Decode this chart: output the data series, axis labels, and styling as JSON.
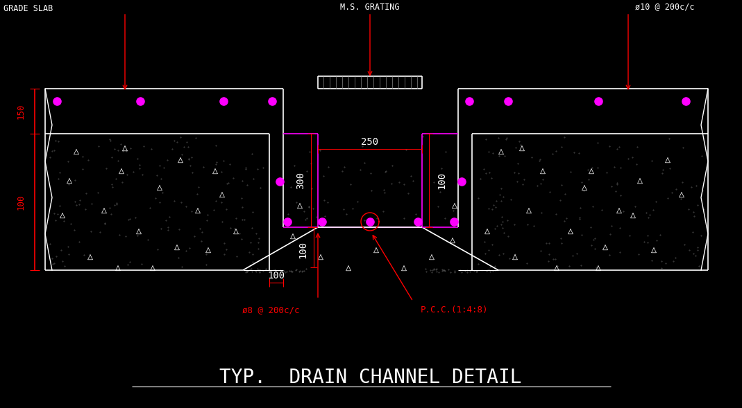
{
  "bg_color": "#000000",
  "line_color_white": "#ffffff",
  "line_color_magenta": "#ff00ff",
  "line_color_red": "#ff0000",
  "title": "TYP.  DRAIN CHANNEL DETAIL",
  "title_fontsize": 20,
  "label_grade_slab": "GRADE SLAB",
  "label_ms_grating": "M.S. GRATING",
  "label_rebar_top": "ø10 @ 200c/c",
  "label_rebar_bot": "ø8 @ 200c/c",
  "label_pcc": "P.C.C.(1:4:8)",
  "dim_250": "250",
  "dim_300": "300",
  "dim_100a": "100",
  "dim_100b": "100",
  "dim_100c": "100",
  "dim_150": "150",
  "dim_100d": "100"
}
